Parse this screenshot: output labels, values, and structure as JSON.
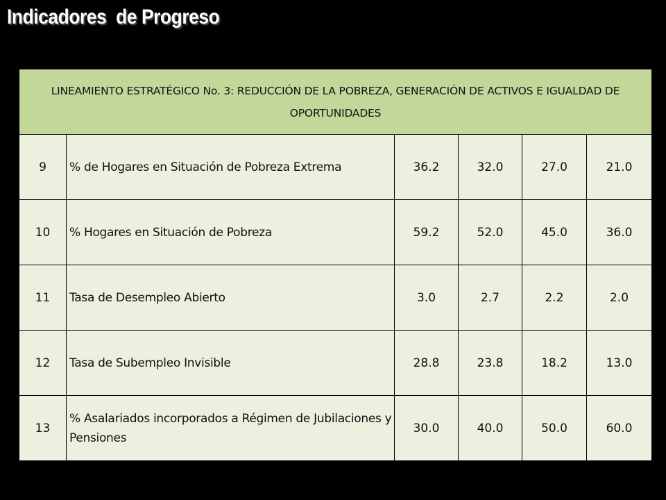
{
  "page": {
    "title": "Indicadores  de Progreso"
  },
  "table": {
    "header": "LINEAMIENTO ESTRATÉGICO No. 3: REDUCCIÓN DE LA POBREZA, GENERACIÓN DE ACTIVOS E IGUALDAD DE OPORTUNIDADES",
    "header_color": "#c4d79b",
    "row_color": "#ebf1de",
    "rows": [
      {
        "num": "9",
        "indicator": "% de Hogares  en Situación de Pobreza Extrema",
        "values": [
          "36.2",
          "32.0",
          "27.0",
          "21.0"
        ]
      },
      {
        "num": "10",
        "indicator": "% Hogares  en Situación de Pobreza",
        "values": [
          "59.2",
          "52.0",
          "45.0",
          "36.0"
        ]
      },
      {
        "num": "11",
        "indicator": "Tasa de Desempleo Abierto",
        "values": [
          "3.0",
          "2.7",
          "2.2",
          "2.0"
        ]
      },
      {
        "num": "12",
        "indicator": "Tasa de Subempleo Invisible",
        "values": [
          "28.8",
          "23.8",
          "18.2",
          "13.0"
        ]
      },
      {
        "num": "13",
        "indicator": "% Asalariados incorporados a Régimen de Jubilaciones y Pensiones",
        "values": [
          "30.0",
          "40.0",
          "50.0",
          "60.0"
        ]
      }
    ]
  }
}
